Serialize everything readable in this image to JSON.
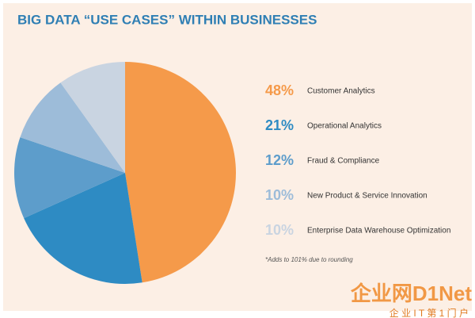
{
  "chart_data": {
    "type": "pie",
    "title": "BIG DATA “USE CASES” WITHIN BUSINESSES",
    "categories": [
      "Customer Analytics",
      "Operational Analytics",
      "Fraud & Compliance",
      "New Product & Service Innovation",
      "Enterprise Data Warehouse Optimization"
    ],
    "values": [
      48,
      21,
      12,
      10,
      10
    ],
    "value_labels": [
      "48%",
      "21%",
      "12%",
      "10%",
      "10%"
    ],
    "colors": [
      "#f59a4a",
      "#2e8bc3",
      "#5d9dcb",
      "#9dbcd9",
      "#c9d4e1"
    ],
    "note": "*Adds to 101% due to rounding"
  },
  "watermark": {
    "logo": "企业网D1Net",
    "tagline": "企 业 I T 第 1 门 户"
  }
}
